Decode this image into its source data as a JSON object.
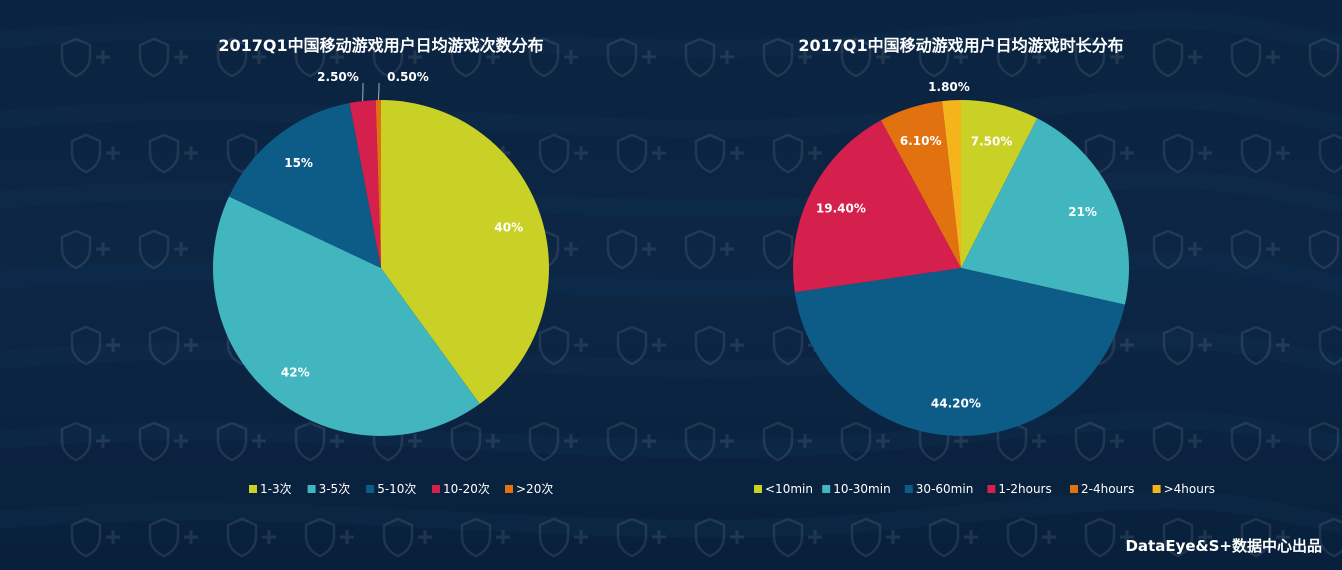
{
  "colors": {
    "background": "#0b2240",
    "text": "#ffffff",
    "leader": "#9fb0c2"
  },
  "chart_data": [
    {
      "type": "pie",
      "title": "2017Q1中国移动游戏用户日均游戏次数分布",
      "categories": [
        "1-3次",
        "3-5次",
        "5-10次",
        "10-20次",
        ">20次"
      ],
      "values": [
        40,
        42,
        15,
        2.5,
        0.5
      ],
      "labels": [
        "40%",
        "42%",
        "15%",
        "2.50%",
        "0.50%"
      ],
      "colors": [
        "#c9d127",
        "#41b6bf",
        "#0d5c87",
        "#d51f4d",
        "#e2720f"
      ],
      "legend": "bottom"
    },
    {
      "type": "pie",
      "title": "2017Q1中国移动游戏用户日均游戏时长分布",
      "categories": [
        "<10min",
        "10-30min",
        "30-60min",
        "1-2hours",
        "2-4hours",
        ">4hours"
      ],
      "values": [
        7.5,
        21,
        44.2,
        19.4,
        6.1,
        1.8
      ],
      "labels": [
        "7.50%",
        "21%",
        "44.20%",
        "19.40%",
        "6.10%",
        "1.80%"
      ],
      "colors": [
        "#c9d127",
        "#41b6bf",
        "#0d5c87",
        "#d51f4d",
        "#e2720f",
        "#f5b31c"
      ],
      "legend": "bottom"
    }
  ],
  "footer": "DataEye&S+数据中心出品"
}
